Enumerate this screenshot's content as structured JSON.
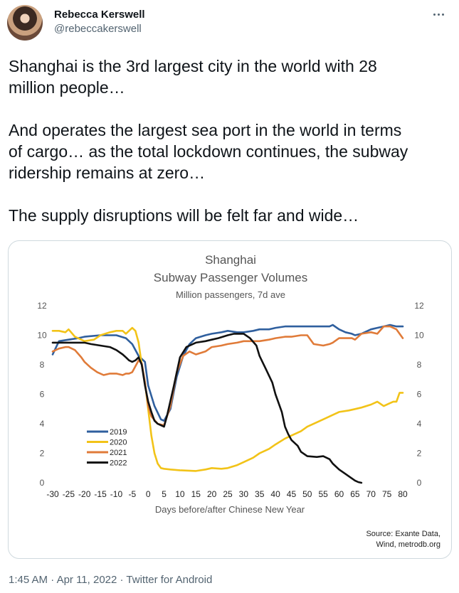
{
  "tweet": {
    "author_name": "Rebecca Kerswell",
    "author_handle": "@rebeccakerswell",
    "text": "Shanghai is the 3rd largest city in the world with 28\nmillion people…\n\nAnd operates the largest sea port in the world in terms\nof cargo… as the total lockdown continues, the subway\nridership remains at zero…\n\nThe supply disruptions will be felt far and wide…",
    "time": "1:45 AM",
    "date": "Apr 11, 2022",
    "source": "Twitter for Android",
    "separator": " · "
  },
  "chart_data": {
    "type": "line",
    "title": "Shanghai",
    "subtitle": "Subway Passenger Volumes",
    "subtitle2": "Million passengers, 7d ave",
    "xlabel": "Days before/after Chinese New Year",
    "xlim": [
      -30,
      80
    ],
    "ylim": [
      0,
      12
    ],
    "xticks": [
      -30,
      -25,
      -20,
      -15,
      -10,
      -5,
      0,
      5,
      10,
      15,
      20,
      25,
      30,
      35,
      40,
      45,
      50,
      55,
      60,
      65,
      70,
      75,
      80
    ],
    "yticks": [
      0,
      2,
      4,
      6,
      8,
      10,
      12
    ],
    "source_lines": [
      "Source: Exante Data,",
      "Wind, metrodb.org"
    ],
    "legend_position": "lower-left",
    "grid": false,
    "series": [
      {
        "name": "2019",
        "color": "#2f5f9e",
        "x": [
          -30,
          -28,
          -25,
          -22,
          -20,
          -15,
          -10,
          -7,
          -5,
          -3,
          -1,
          0,
          2,
          4,
          5,
          7,
          9,
          11,
          13,
          15,
          18,
          20,
          23,
          25,
          28,
          30,
          33,
          35,
          38,
          40,
          43,
          45,
          48,
          50,
          53,
          55,
          57,
          58,
          60,
          62,
          64,
          65,
          67,
          70,
          72,
          74,
          76,
          78,
          80
        ],
        "y": [
          8.7,
          9.6,
          9.7,
          9.8,
          9.9,
          10.0,
          10.0,
          9.8,
          9.4,
          8.6,
          8.2,
          6.6,
          5.2,
          4.3,
          4.2,
          5.0,
          7.2,
          8.6,
          9.4,
          9.8,
          10.0,
          10.1,
          10.2,
          10.3,
          10.2,
          10.2,
          10.3,
          10.4,
          10.4,
          10.5,
          10.6,
          10.6,
          10.6,
          10.6,
          10.6,
          10.6,
          10.6,
          10.7,
          10.4,
          10.2,
          10.1,
          10.0,
          10.1,
          10.4,
          10.5,
          10.6,
          10.7,
          10.6,
          10.6
        ]
      },
      {
        "name": "2020",
        "color": "#f2c318",
        "x": [
          -30,
          -28,
          -26,
          -25,
          -23,
          -20,
          -17,
          -15,
          -12,
          -10,
          -8,
          -7,
          -5,
          -4,
          -3,
          -2,
          -1,
          0,
          1,
          2,
          3,
          4,
          5,
          7,
          10,
          15,
          18,
          20,
          23,
          25,
          28,
          30,
          33,
          35,
          38,
          40,
          43,
          45,
          48,
          50,
          53,
          55,
          58,
          60,
          63,
          65,
          67,
          70,
          72,
          74,
          76,
          77,
          78,
          79,
          80
        ],
        "y": [
          10.3,
          10.3,
          10.2,
          10.4,
          9.9,
          9.6,
          9.7,
          10.0,
          10.2,
          10.3,
          10.3,
          10.1,
          10.5,
          10.3,
          9.5,
          8.0,
          6.8,
          5.0,
          3.2,
          2.0,
          1.3,
          1.0,
          0.95,
          0.9,
          0.85,
          0.8,
          0.9,
          1.0,
          0.95,
          1.0,
          1.2,
          1.4,
          1.7,
          2.0,
          2.3,
          2.6,
          3.0,
          3.2,
          3.5,
          3.8,
          4.1,
          4.3,
          4.6,
          4.8,
          4.9,
          5.0,
          5.1,
          5.3,
          5.5,
          5.2,
          5.4,
          5.5,
          5.5,
          6.1,
          6.1
        ]
      },
      {
        "name": "2021",
        "color": "#e07b39",
        "x": [
          -30,
          -28,
          -26,
          -25,
          -23,
          -21,
          -20,
          -18,
          -16,
          -14,
          -12,
          -10,
          -8,
          -7,
          -6,
          -5,
          -4,
          -3,
          -2,
          -1,
          0,
          1,
          3,
          5,
          7,
          9,
          11,
          13,
          15,
          18,
          20,
          23,
          25,
          28,
          30,
          32,
          35,
          38,
          40,
          43,
          45,
          48,
          50,
          52,
          55,
          57,
          58,
          60,
          62,
          64,
          65,
          67,
          70,
          72,
          74,
          76,
          78,
          80
        ],
        "y": [
          8.9,
          9.1,
          9.2,
          9.2,
          9.0,
          8.5,
          8.2,
          7.8,
          7.5,
          7.3,
          7.4,
          7.4,
          7.3,
          7.4,
          7.4,
          7.5,
          7.9,
          8.3,
          8.1,
          6.8,
          5.2,
          4.5,
          4.0,
          3.9,
          5.2,
          7.5,
          8.6,
          8.9,
          8.7,
          8.9,
          9.2,
          9.3,
          9.4,
          9.5,
          9.6,
          9.6,
          9.6,
          9.7,
          9.8,
          9.9,
          9.9,
          10.0,
          10.0,
          9.4,
          9.3,
          9.4,
          9.5,
          9.8,
          9.8,
          9.8,
          9.7,
          10.1,
          10.2,
          10.1,
          10.6,
          10.6,
          10.4,
          9.8
        ]
      },
      {
        "name": "2022",
        "color": "#111111",
        "x": [
          -30,
          -28,
          -25,
          -22,
          -20,
          -18,
          -15,
          -12,
          -10,
          -8,
          -7,
          -6,
          -5,
          -4,
          -3,
          -2,
          -1,
          0,
          1,
          2,
          3,
          4,
          5,
          6,
          8,
          10,
          12,
          15,
          18,
          20,
          22,
          25,
          27,
          28,
          30,
          32,
          34,
          35,
          37,
          39,
          40,
          42,
          43,
          44,
          45,
          47,
          48,
          50,
          53,
          55,
          57,
          58,
          60,
          62,
          64,
          65,
          66,
          67
        ],
        "y": [
          9.5,
          9.5,
          9.5,
          9.5,
          9.5,
          9.4,
          9.3,
          9.2,
          9.0,
          8.7,
          8.5,
          8.3,
          8.2,
          8.3,
          8.5,
          8.0,
          6.6,
          5.5,
          4.8,
          4.2,
          4.0,
          3.9,
          3.8,
          4.6,
          6.5,
          8.5,
          9.2,
          9.5,
          9.6,
          9.7,
          9.8,
          10.0,
          10.1,
          10.1,
          10.1,
          9.8,
          9.3,
          8.6,
          7.7,
          6.8,
          6.0,
          4.8,
          3.8,
          3.3,
          2.9,
          2.5,
          2.1,
          1.8,
          1.75,
          1.8,
          1.6,
          1.3,
          0.9,
          0.6,
          0.3,
          0.15,
          0.05,
          0.0
        ]
      }
    ]
  }
}
